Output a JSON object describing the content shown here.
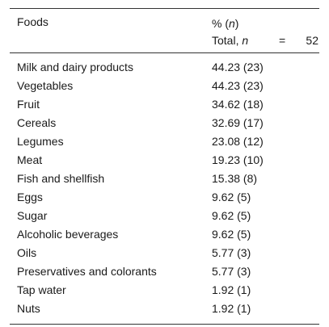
{
  "table": {
    "header": {
      "col1": "Foods",
      "col2_line1_prefix": "% (",
      "col2_line1_italic": "n",
      "col2_line1_suffix": ")",
      "col2_line2_prefix": "Total, ",
      "col2_line2_italic": "n",
      "col2_line2_eq": "=",
      "col2_line2_value": "52"
    },
    "rows": [
      {
        "food": "Milk and dairy products",
        "value": "44.23 (23)"
      },
      {
        "food": "Vegetables",
        "value": "44.23 (23)"
      },
      {
        "food": "Fruit",
        "value": "34.62 (18)"
      },
      {
        "food": "Cereals",
        "value": "32.69 (17)"
      },
      {
        "food": "Legumes",
        "value": "23.08 (12)"
      },
      {
        "food": "Meat",
        "value": "19.23 (10)"
      },
      {
        "food": "Fish and shellfish",
        "value": "15.38 (8)"
      },
      {
        "food": "Eggs",
        "value": "9.62 (5)"
      },
      {
        "food": "Sugar",
        "value": "9.62 (5)"
      },
      {
        "food": "Alcoholic beverages",
        "value": "9.62 (5)"
      },
      {
        "food": "Oils",
        "value": "5.77 (3)"
      },
      {
        "food": "Preservatives and colorants",
        "value": "5.77 (3)"
      },
      {
        "food": "Tap water",
        "value": "1.92 (1)"
      },
      {
        "food": "Nuts",
        "value": "1.92 (1)"
      }
    ]
  }
}
